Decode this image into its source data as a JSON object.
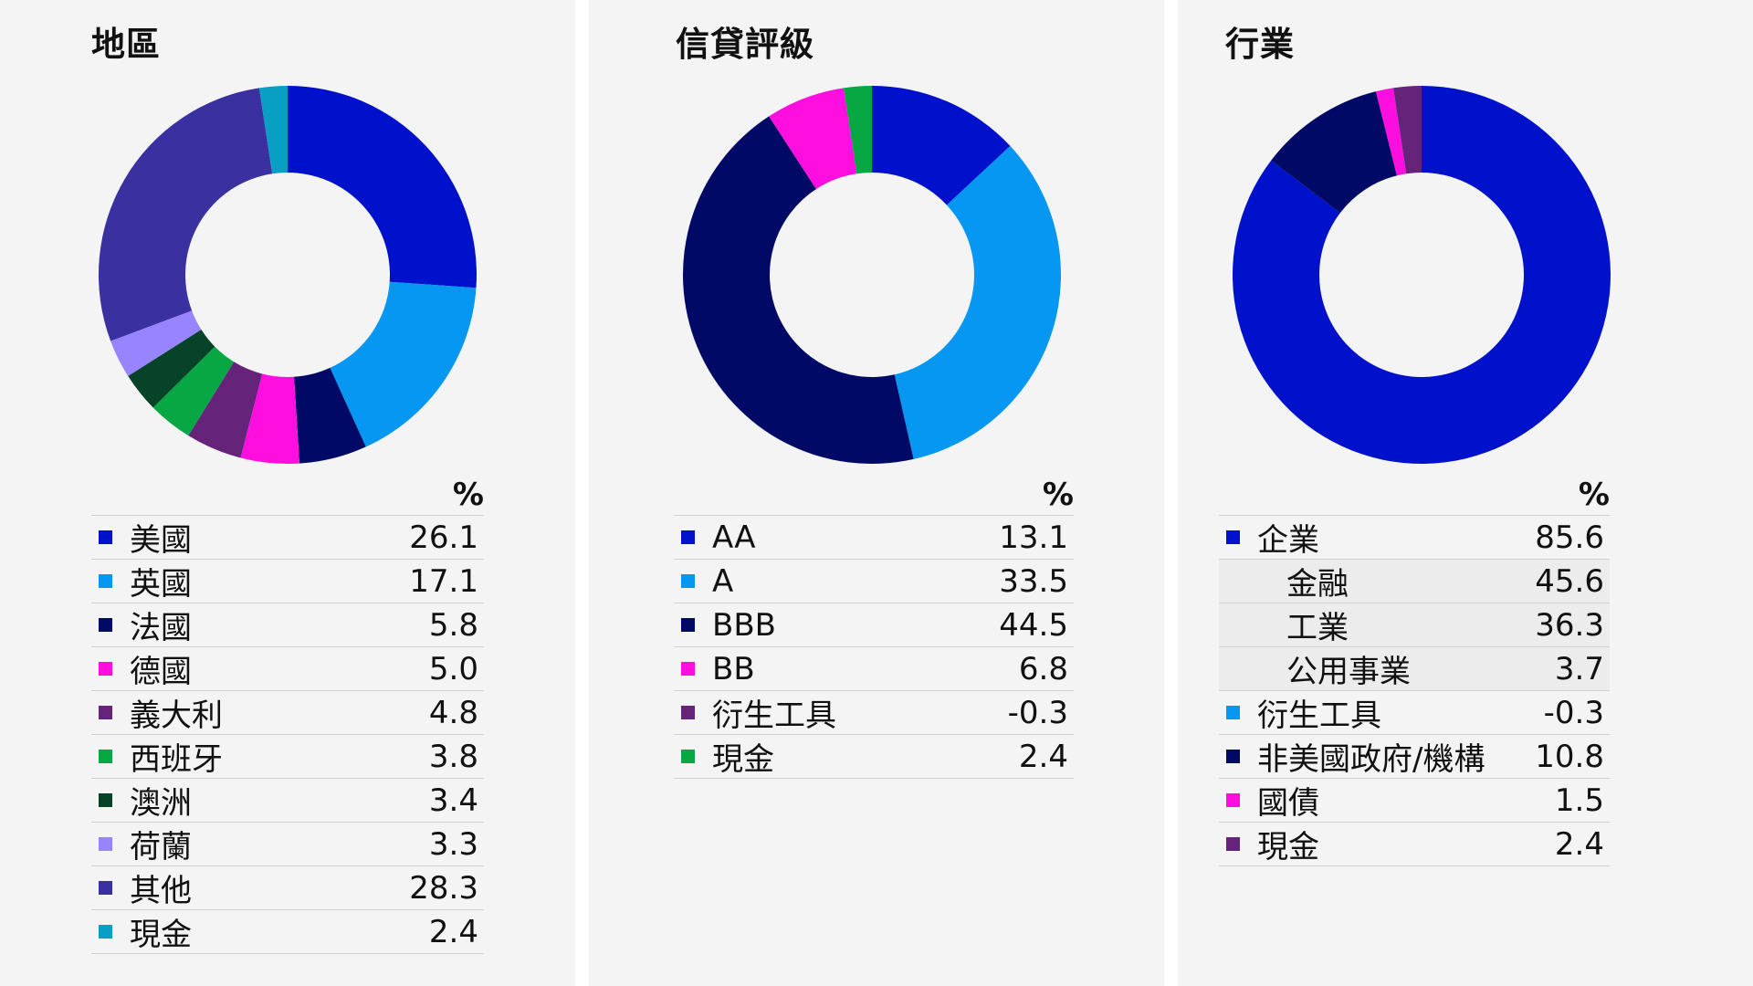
{
  "chart_data": [
    {
      "type": "donut",
      "title": "地區",
      "unit_header": "%",
      "slices": [
        {
          "label": "美國",
          "value": 26.1,
          "display": "26.1",
          "color": "#0011cc"
        },
        {
          "label": "英國",
          "value": 17.1,
          "display": "17.1",
          "color": "#0597f2"
        },
        {
          "label": "法國",
          "value": 5.8,
          "display": "5.8",
          "color": "#000a66"
        },
        {
          "label": "德國",
          "value": 5.0,
          "display": "5.0",
          "color": "#ff0ee0"
        },
        {
          "label": "義大利",
          "value": 4.8,
          "display": "4.8",
          "color": "#66237a"
        },
        {
          "label": "西班牙",
          "value": 3.8,
          "display": "3.8",
          "color": "#07a843"
        },
        {
          "label": "澳洲",
          "value": 3.4,
          "display": "3.4",
          "color": "#064328"
        },
        {
          "label": "荷蘭",
          "value": 3.3,
          "display": "3.3",
          "color": "#9884ff"
        },
        {
          "label": "其他",
          "value": 28.3,
          "display": "28.3",
          "color": "#3b30a0"
        },
        {
          "label": "現金",
          "value": 2.4,
          "display": "2.4",
          "color": "#099fc4"
        }
      ]
    },
    {
      "type": "donut",
      "title": "信貸評級",
      "unit_header": "%",
      "slices": [
        {
          "label": "AA",
          "value": 13.1,
          "display": "13.1",
          "color": "#0011cc"
        },
        {
          "label": "A",
          "value": 33.5,
          "display": "33.5",
          "color": "#0597f2"
        },
        {
          "label": "BBB",
          "value": 44.5,
          "display": "44.5",
          "color": "#000a66"
        },
        {
          "label": "BB",
          "value": 6.8,
          "display": "6.8",
          "color": "#ff0ee0"
        },
        {
          "label": "衍生工具",
          "value": -0.3,
          "display": "-0.3",
          "color": "#66237a"
        },
        {
          "label": "現金",
          "value": 2.4,
          "display": "2.4",
          "color": "#07a843"
        }
      ]
    },
    {
      "type": "donut",
      "title": "行業",
      "unit_header": "%",
      "slices": [
        {
          "label": "企業",
          "value": 85.6,
          "display": "85.6",
          "color": "#0011cc"
        },
        {
          "label": "金融",
          "value": 45.6,
          "display": "45.6",
          "sub": true
        },
        {
          "label": "工業",
          "value": 36.3,
          "display": "36.3",
          "sub": true
        },
        {
          "label": "公用事業",
          "value": 3.7,
          "display": "3.7",
          "sub": true
        },
        {
          "label": "衍生工具",
          "value": -0.3,
          "display": "-0.3",
          "color": "#0597f2"
        },
        {
          "label": "非美國政府/機構",
          "value": 10.8,
          "display": "10.8",
          "color": "#000a66"
        },
        {
          "label": "國債",
          "value": 1.5,
          "display": "1.5",
          "color": "#ff0ee0"
        },
        {
          "label": "現金",
          "value": 2.4,
          "display": "2.4",
          "color": "#66237a"
        }
      ]
    }
  ]
}
